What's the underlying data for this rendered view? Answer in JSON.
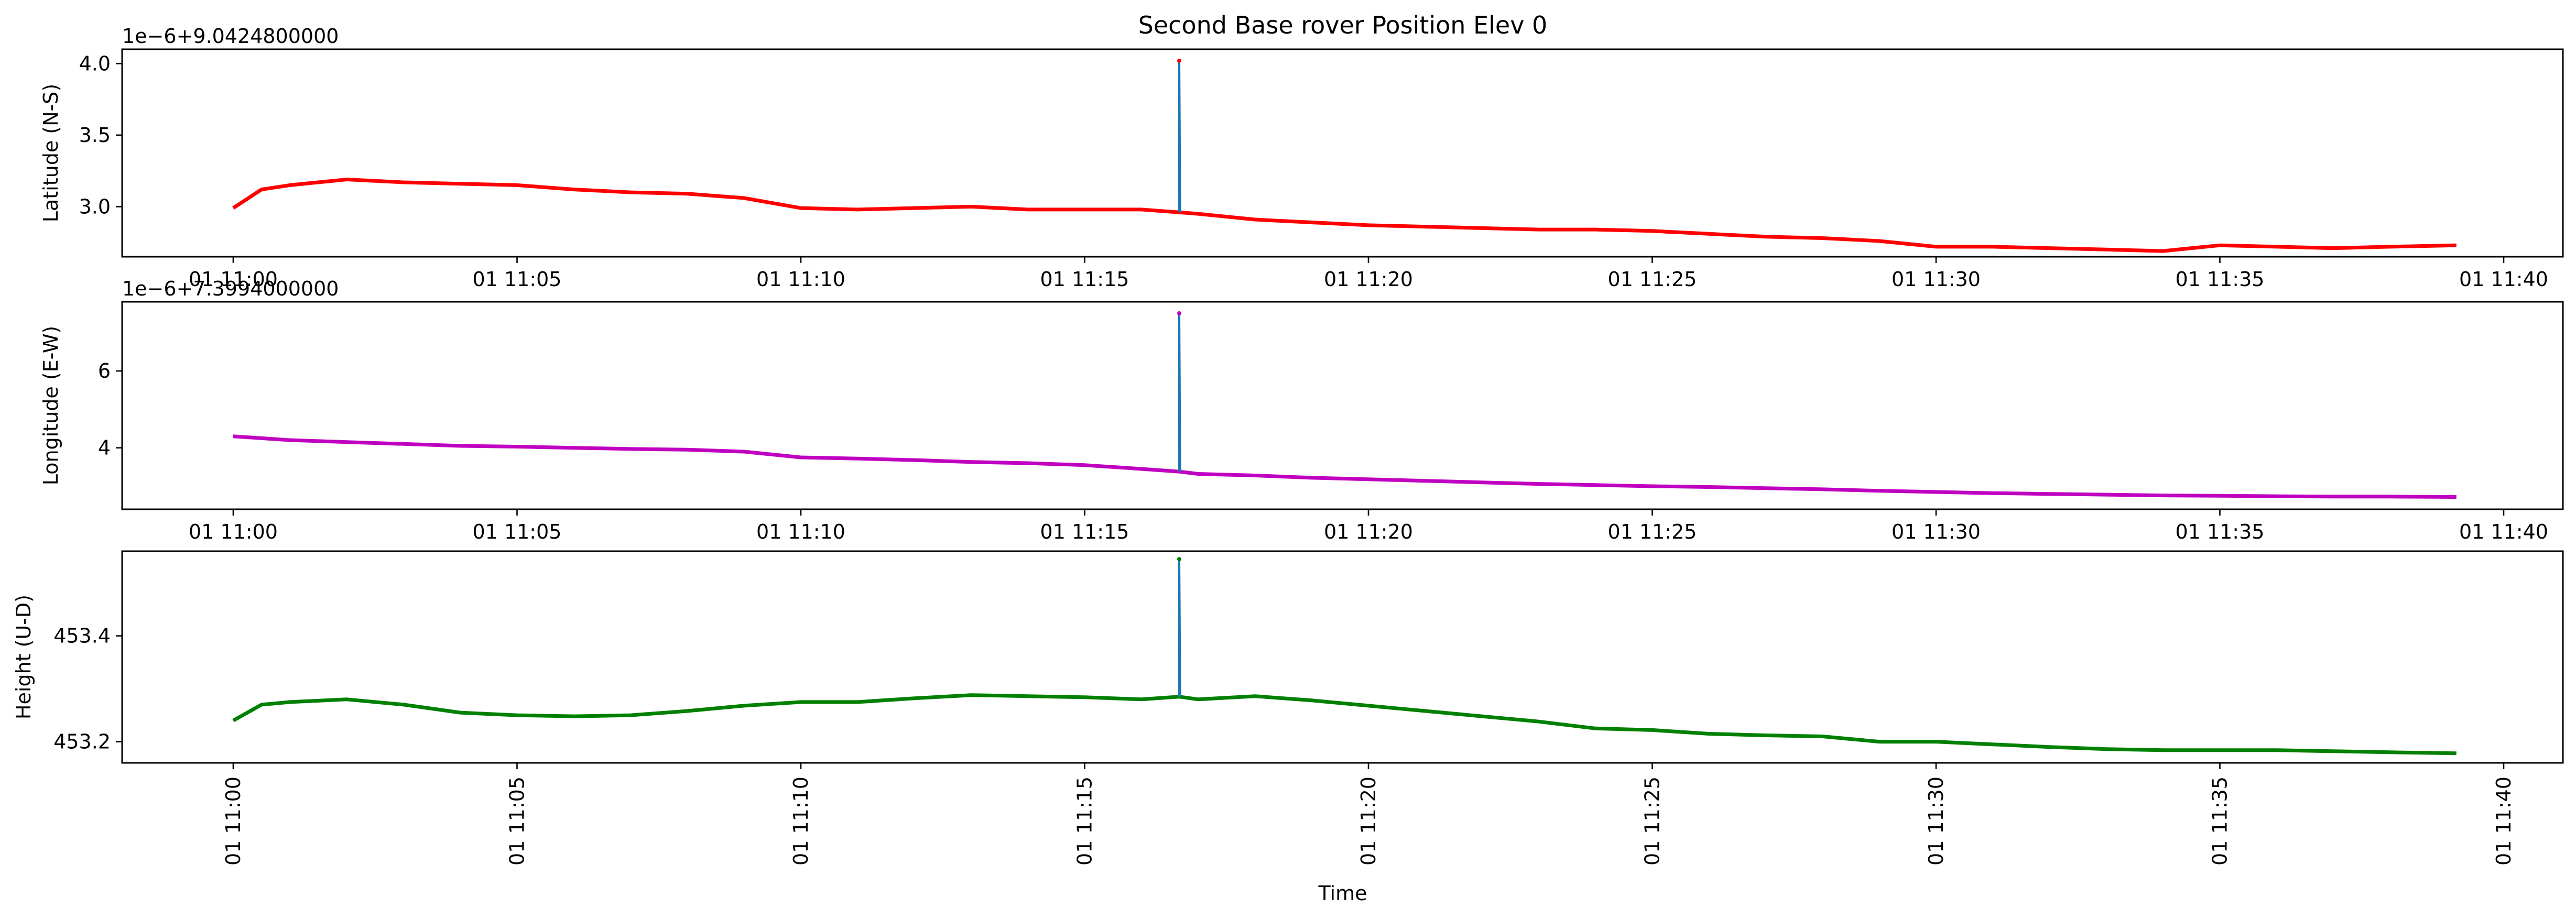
{
  "chart_data": [
    {
      "type": "line",
      "title": "Second Base rover Position Elev 0",
      "xlabel": "",
      "ylabel": "Latitude (N-S)",
      "offset_text": "1e−6+9.0424800000",
      "x_ticks": [
        "01 11:00",
        "01 11:05",
        "01 11:10",
        "01 11:15",
        "01 11:20",
        "01 11:25",
        "01 11:30",
        "01 11:35",
        "01 11:40"
      ],
      "x_tick_rotation": 0,
      "xlim": [
        "11:00:00",
        "11:40:00"
      ],
      "y_ticks": [
        "3.0",
        "3.5",
        "4.0"
      ],
      "y_tick_values": [
        3.0,
        3.5,
        4.0
      ],
      "ylim": [
        2.65,
        4.1
      ],
      "grid": false,
      "series": [
        {
          "color": "#ff0000",
          "x": [
            "11:00:00",
            "11:00:30",
            "11:01:00",
            "11:02:00",
            "11:03:00",
            "11:04:00",
            "11:05:00",
            "11:06:00",
            "11:07:00",
            "11:08:00",
            "11:09:00",
            "11:10:00",
            "11:11:00",
            "11:12:00",
            "11:13:00",
            "11:14:00",
            "11:15:00",
            "11:16:00",
            "11:16:40",
            "11:17:00",
            "11:18:00",
            "11:19:00",
            "11:20:00",
            "11:21:00",
            "11:22:00",
            "11:23:00",
            "11:24:00",
            "11:25:00",
            "11:26:00",
            "11:27:00",
            "11:28:00",
            "11:29:00",
            "11:30:00",
            "11:31:00",
            "11:32:00",
            "11:33:00",
            "11:34:00",
            "11:35:00",
            "11:36:00",
            "11:37:00",
            "11:38:00",
            "11:39:10"
          ],
          "y": [
            2.99,
            3.12,
            3.15,
            3.19,
            3.17,
            3.16,
            3.15,
            3.12,
            3.1,
            3.09,
            3.06,
            2.99,
            2.98,
            2.99,
            3.0,
            2.98,
            2.98,
            2.98,
            2.96,
            2.95,
            2.91,
            2.89,
            2.87,
            2.86,
            2.85,
            2.84,
            2.84,
            2.83,
            2.81,
            2.79,
            2.78,
            2.76,
            2.72,
            2.72,
            2.71,
            2.7,
            2.69,
            2.73,
            2.72,
            2.71,
            2.72,
            2.73
          ]
        },
        {
          "color": "#1f77b4",
          "x": [
            "11:16:40",
            "11:16:40",
            "11:16:41"
          ],
          "y": [
            2.96,
            4.02,
            2.96
          ]
        }
      ]
    },
    {
      "type": "line",
      "title": "",
      "xlabel": "",
      "ylabel": "Longitude (E-W)",
      "offset_text": "1e−6+7.3994000000",
      "x_ticks": [
        "01 11:00",
        "01 11:05",
        "01 11:10",
        "01 11:15",
        "01 11:20",
        "01 11:25",
        "01 11:30",
        "01 11:35",
        "01 11:40"
      ],
      "x_tick_rotation": 0,
      "xlim": [
        "11:00:00",
        "11:40:00"
      ],
      "y_ticks": [
        "4",
        "6"
      ],
      "y_tick_values": [
        4,
        6
      ],
      "ylim": [
        2.4,
        7.8
      ],
      "grid": false,
      "series": [
        {
          "color": "#c000c0",
          "x": [
            "11:00:00",
            "11:01:00",
            "11:02:00",
            "11:03:00",
            "11:04:00",
            "11:05:00",
            "11:06:00",
            "11:07:00",
            "11:08:00",
            "11:09:00",
            "11:10:00",
            "11:11:00",
            "11:12:00",
            "11:13:00",
            "11:14:00",
            "11:15:00",
            "11:16:00",
            "11:16:40",
            "11:17:00",
            "11:18:00",
            "11:19:00",
            "11:20:00",
            "11:21:00",
            "11:22:00",
            "11:23:00",
            "11:24:00",
            "11:25:00",
            "11:26:00",
            "11:27:00",
            "11:28:00",
            "11:29:00",
            "11:30:00",
            "11:31:00",
            "11:32:00",
            "11:33:00",
            "11:34:00",
            "11:35:00",
            "11:36:00",
            "11:37:00",
            "11:38:00",
            "11:39:10"
          ],
          "y": [
            4.3,
            4.2,
            4.15,
            4.1,
            4.05,
            4.03,
            4.0,
            3.97,
            3.95,
            3.9,
            3.75,
            3.72,
            3.68,
            3.63,
            3.6,
            3.55,
            3.45,
            3.38,
            3.32,
            3.28,
            3.22,
            3.18,
            3.14,
            3.1,
            3.06,
            3.03,
            3.0,
            2.98,
            2.95,
            2.92,
            2.88,
            2.85,
            2.82,
            2.8,
            2.78,
            2.76,
            2.75,
            2.74,
            2.73,
            2.73,
            2.72
          ]
        },
        {
          "color": "#1f77b4",
          "x": [
            "11:16:40",
            "11:16:40",
            "11:16:41"
          ],
          "y": [
            3.38,
            7.5,
            3.38
          ]
        }
      ]
    },
    {
      "type": "line",
      "title": "",
      "xlabel": "Time",
      "ylabel": "Height (U-D)",
      "offset_text": "",
      "x_ticks": [
        "01 11:00",
        "01 11:05",
        "01 11:10",
        "01 11:15",
        "01 11:20",
        "01 11:25",
        "01 11:30",
        "01 11:35",
        "01 11:40"
      ],
      "x_tick_rotation": -90,
      "xlim": [
        "11:00:00",
        "11:40:00"
      ],
      "y_ticks": [
        "453.2",
        "453.4"
      ],
      "y_tick_values": [
        453.2,
        453.4
      ],
      "ylim": [
        453.16,
        453.56
      ],
      "grid": false,
      "series": [
        {
          "color": "#008000",
          "x": [
            "11:00:00",
            "11:00:30",
            "11:01:00",
            "11:02:00",
            "11:03:00",
            "11:04:00",
            "11:05:00",
            "11:06:00",
            "11:07:00",
            "11:08:00",
            "11:09:00",
            "11:10:00",
            "11:11:00",
            "11:12:00",
            "11:13:00",
            "11:14:00",
            "11:15:00",
            "11:16:00",
            "11:16:40",
            "11:17:00",
            "11:18:00",
            "11:19:00",
            "11:20:00",
            "11:21:00",
            "11:22:00",
            "11:23:00",
            "11:24:00",
            "11:25:00",
            "11:26:00",
            "11:27:00",
            "11:28:00",
            "11:29:00",
            "11:30:00",
            "11:31:00",
            "11:32:00",
            "11:33:00",
            "11:34:00",
            "11:35:00",
            "11:36:00",
            "11:37:00",
            "11:38:00",
            "11:39:10"
          ],
          "y": [
            453.24,
            453.27,
            453.275,
            453.28,
            453.27,
            453.255,
            453.25,
            453.248,
            453.25,
            453.258,
            453.268,
            453.275,
            453.275,
            453.282,
            453.288,
            453.286,
            453.284,
            453.28,
            453.285,
            453.28,
            453.286,
            453.278,
            453.268,
            453.258,
            453.248,
            453.238,
            453.225,
            453.222,
            453.215,
            453.212,
            453.21,
            453.2,
            453.2,
            453.195,
            453.19,
            453.186,
            453.184,
            453.184,
            453.184,
            453.182,
            453.18,
            453.178
          ]
        },
        {
          "color": "#1f77b4",
          "x": [
            "11:16:40",
            "11:16:40",
            "11:16:41"
          ],
          "y": [
            453.285,
            453.545,
            453.285
          ]
        }
      ]
    }
  ]
}
